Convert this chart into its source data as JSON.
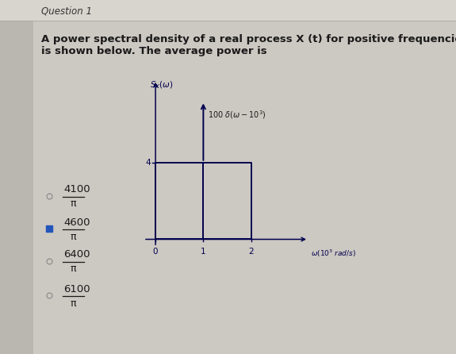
{
  "title": "Question 1",
  "question_text_line1": "A power spectral density of a real process X (t) for positive frequencies",
  "question_text_line2": "is shown below. The average power is",
  "options": [
    {
      "label": "4100",
      "denom": "π",
      "selected": false
    },
    {
      "label": "4600",
      "denom": "π",
      "selected": true
    },
    {
      "label": "6400",
      "denom": "π",
      "selected": false
    },
    {
      "label": "6100",
      "denom": "π",
      "selected": false
    }
  ],
  "bg_color": "#ccc8c2",
  "content_bg": "#e8e4df",
  "plot_bg": "#e8e4df",
  "text_color": "#1a1a1a",
  "line_color": "#00004d",
  "selected_color": "#2255bb",
  "title_color": "#333333",
  "question_fontsize": 9.5,
  "title_fontsize": 8.5
}
